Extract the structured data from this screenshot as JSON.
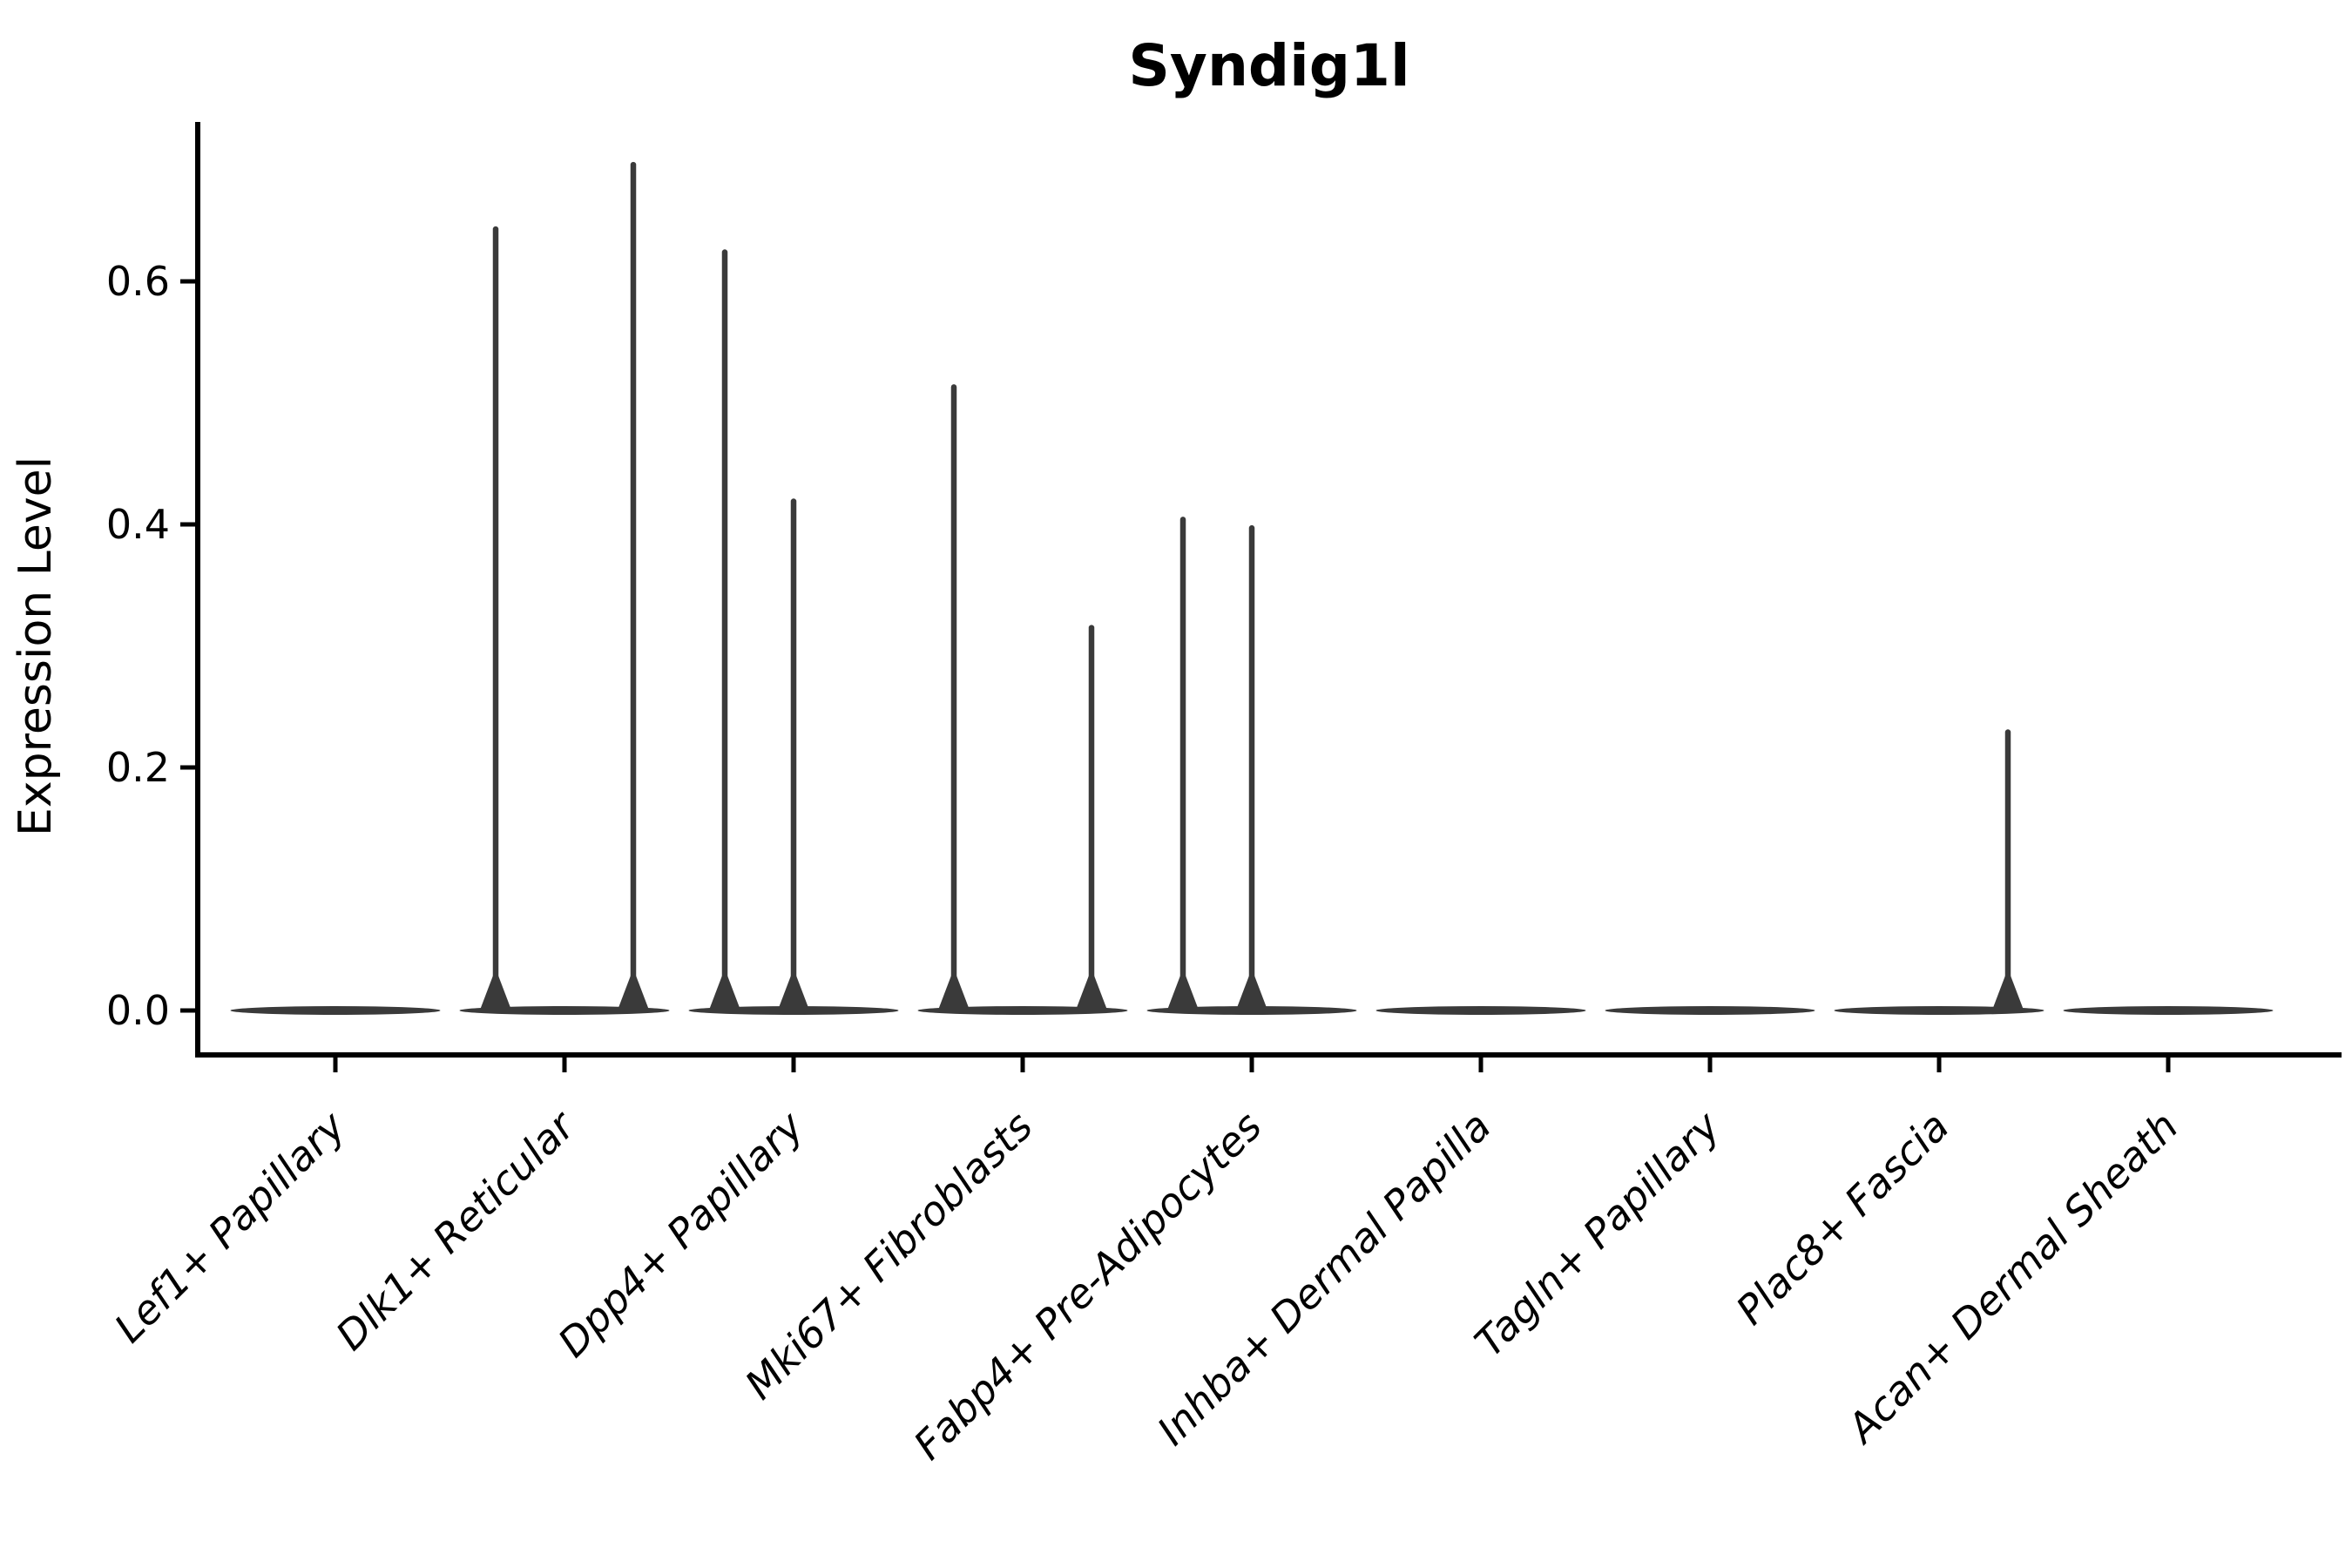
{
  "figure": {
    "background": "#ffffff",
    "violin_color": "#3a3a3a",
    "axis_color": "#000000"
  },
  "chart_data": {
    "type": "violin",
    "title": "Syndig1l",
    "xlabel": "",
    "ylabel": "Expression Level",
    "ylim": [
      0,
      0.73
    ],
    "yticks": [
      0.0,
      0.2,
      0.4,
      0.6
    ],
    "ytick_labels": [
      "0.0",
      "0.2",
      "0.4",
      "0.6"
    ],
    "legend": "none",
    "grid": false,
    "description": "Single-cell expression violin plot; each category shows a wide flat density body at 0 with thin needle-like tails rising to the maximum expressing cells. Up to three sub-violin slots (left, center, right) per category.",
    "categories": [
      {
        "label": "Lef1+ Papillary",
        "spikes": []
      },
      {
        "label": "Dlk1+ Reticular",
        "spikes": [
          {
            "slot": "left",
            "max": 0.643
          },
          {
            "slot": "right",
            "max": 0.696
          }
        ]
      },
      {
        "label": "Dpp4+ Papillary",
        "spikes": [
          {
            "slot": "left",
            "max": 0.624
          },
          {
            "slot": "center",
            "max": 0.419
          }
        ]
      },
      {
        "label": "Mki67+ Fibroblasts",
        "spikes": [
          {
            "slot": "left",
            "max": 0.513
          },
          {
            "slot": "right",
            "max": 0.315
          }
        ]
      },
      {
        "label": "Fabp4+ Pre-Adipocytes",
        "spikes": [
          {
            "slot": "left",
            "max": 0.404
          },
          {
            "slot": "center",
            "max": 0.397
          }
        ]
      },
      {
        "label": "Inhba+ Dermal Papilla",
        "spikes": []
      },
      {
        "label": "Tagln+ Papillary",
        "spikes": []
      },
      {
        "label": "Plac8+ Fascia",
        "spikes": [
          {
            "slot": "right",
            "max": 0.229
          }
        ]
      },
      {
        "label": "Acan+ Dermal Sheath",
        "spikes": []
      }
    ]
  }
}
